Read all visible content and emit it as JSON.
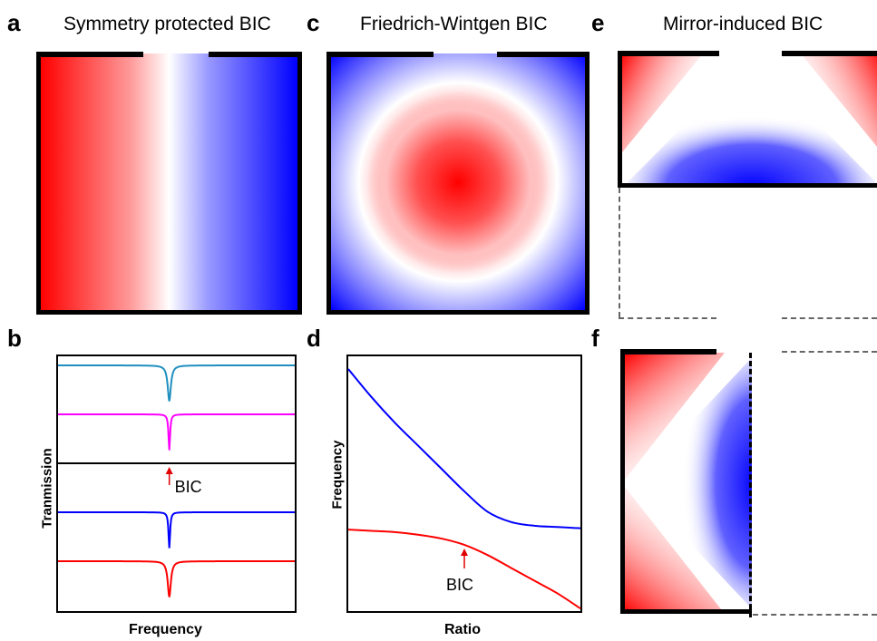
{
  "panels": {
    "a": {
      "letter": "a",
      "title": "Symmetry protected BIC"
    },
    "b": {
      "letter": "b",
      "xlabel": "Frequency",
      "ylabel": "Tranmission",
      "annotation": "BIC"
    },
    "c": {
      "letter": "c",
      "title": "Friedrich-Wintgen BIC"
    },
    "d": {
      "letter": "d",
      "xlabel": "Ratio",
      "ylabel": "Frequency",
      "annotation": "BIC"
    },
    "e": {
      "letter": "e",
      "title": "Mirror-induced BIC"
    },
    "f": {
      "letter": "f"
    }
  },
  "colors": {
    "red": "#ff0000",
    "blue": "#0000ff",
    "white": "#ffffff"
  },
  "chart_data": [
    {
      "type": "line",
      "panel": "b",
      "xlabel": "Frequency",
      "ylabel": "Tranmission",
      "grid": false,
      "series": [
        {
          "color": "#1f8fbf",
          "offset": 4,
          "depth": 0.9,
          "width": 0.05
        },
        {
          "color": "#ff00ff",
          "offset": 3,
          "depth": 0.9,
          "width": 0.025
        },
        {
          "color": "#000000",
          "offset": 2,
          "depth": 0.0,
          "width": 0.02
        },
        {
          "color": "#0000ff",
          "offset": 1,
          "depth": 0.9,
          "width": 0.025
        },
        {
          "color": "#ff0000",
          "offset": 0,
          "depth": 0.9,
          "width": 0.05
        }
      ],
      "annotations": [
        {
          "text": "BIC",
          "series_offset": 2
        }
      ]
    },
    {
      "type": "line",
      "panel": "d",
      "xlabel": "Ratio",
      "ylabel": "Frequency",
      "grid": false,
      "series": [
        {
          "color": "#0000ff",
          "x": [
            0,
            0.1,
            0.2,
            0.3,
            0.4,
            0.5,
            0.6,
            0.7,
            0.8,
            0.9,
            1.0
          ],
          "y": [
            0.95,
            0.84,
            0.74,
            0.65,
            0.56,
            0.47,
            0.39,
            0.35,
            0.335,
            0.33,
            0.325
          ]
        },
        {
          "color": "#ff0000",
          "x": [
            0,
            0.1,
            0.2,
            0.3,
            0.4,
            0.5,
            0.6,
            0.7,
            0.8,
            0.9,
            1.0
          ],
          "y": [
            0.32,
            0.315,
            0.31,
            0.3,
            0.285,
            0.26,
            0.22,
            0.17,
            0.12,
            0.07,
            0.01
          ]
        }
      ],
      "annotations": [
        {
          "text": "BIC",
          "x": 0.5,
          "y": 0.26
        }
      ]
    }
  ]
}
